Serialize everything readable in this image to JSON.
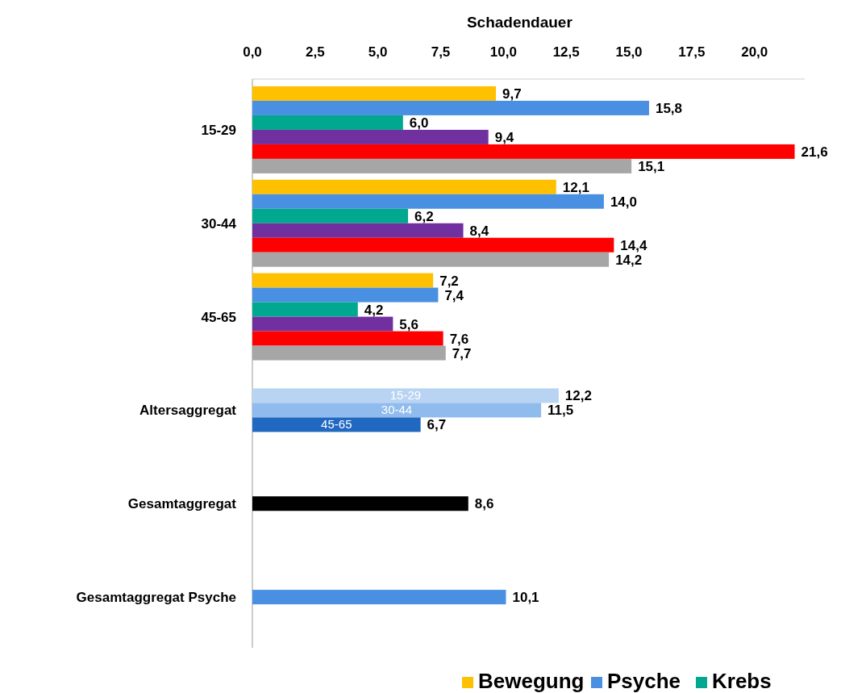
{
  "chart_data": {
    "type": "bar",
    "orientation": "horizontal",
    "xlabel": "Schadendauer",
    "categories": [
      "15-29",
      "30-44",
      "45-65",
      "Altersaggregat",
      "Gesamtaggregat",
      "Gesamtaggregat Psyche"
    ],
    "xlim": [
      0,
      22
    ],
    "xticks": [
      {
        "value": 0,
        "label": "0,0"
      },
      {
        "value": 2.5,
        "label": "2,5"
      },
      {
        "value": 5,
        "label": "5,0"
      },
      {
        "value": 7.5,
        "label": "7,5"
      },
      {
        "value": 10,
        "label": "10,0"
      },
      {
        "value": 12.5,
        "label": "12,5"
      },
      {
        "value": 15,
        "label": "15,0"
      },
      {
        "value": 17.5,
        "label": "17,5"
      },
      {
        "value": 20,
        "label": "20,0"
      }
    ],
    "grid": false,
    "legend": "bottom",
    "series": [
      {
        "name": "Bewegung",
        "color": "#ffc000",
        "values": [
          9.7,
          12.1,
          7.2,
          null,
          null,
          null
        ],
        "value_labels": [
          "9,7",
          "12,1",
          "7,2",
          null,
          null,
          null
        ]
      },
      {
        "name": "Psyche",
        "color": "#4a90e2",
        "values": [
          15.8,
          14.0,
          7.4,
          null,
          null,
          10.1
        ],
        "value_labels": [
          "15,8",
          "14,0",
          "7,4",
          null,
          null,
          "10,1"
        ]
      },
      {
        "name": "Krebs",
        "color": "#00a88f",
        "values": [
          6.0,
          6.2,
          4.2,
          null,
          null,
          null
        ],
        "value_labels": [
          "6,0",
          "6,2",
          "4,2",
          null,
          null,
          null
        ]
      },
      {
        "color": "#7030a0",
        "values": [
          9.4,
          8.4,
          5.6,
          null,
          null,
          null
        ],
        "value_labels": [
          "9,4",
          "8,4",
          "5,6",
          null,
          null,
          null
        ]
      },
      {
        "color": "#ff0000",
        "values": [
          21.6,
          14.4,
          7.6,
          null,
          null,
          null
        ],
        "value_labels": [
          "21,6",
          "14,4",
          "7,6",
          null,
          null,
          null
        ]
      },
      {
        "color": "#a6a6a6",
        "values": [
          15.1,
          14.2,
          7.7,
          null,
          null,
          null
        ],
        "value_labels": [
          "15,1",
          "14,2",
          "7,7",
          null,
          null,
          null
        ]
      },
      {
        "name": "15-29",
        "color": "#b8d4f2",
        "values": [
          null,
          null,
          null,
          12.2,
          null,
          null
        ],
        "value_labels": [
          null,
          null,
          null,
          "12,2",
          null,
          null
        ]
      },
      {
        "name": "30-44",
        "color": "#8fbbed",
        "values": [
          null,
          null,
          null,
          11.5,
          null,
          null
        ],
        "value_labels": [
          null,
          null,
          null,
          "11,5",
          null,
          null
        ]
      },
      {
        "name": "45-65",
        "color": "#2068c0",
        "values": [
          null,
          null,
          null,
          6.7,
          null,
          null
        ],
        "value_labels": [
          null,
          null,
          null,
          "6,7",
          null,
          null
        ]
      },
      {
        "color": "#000000",
        "values": [
          null,
          null,
          null,
          null,
          8.6,
          null
        ],
        "value_labels": [
          null,
          null,
          null,
          null,
          "8,6",
          null
        ]
      }
    ]
  }
}
